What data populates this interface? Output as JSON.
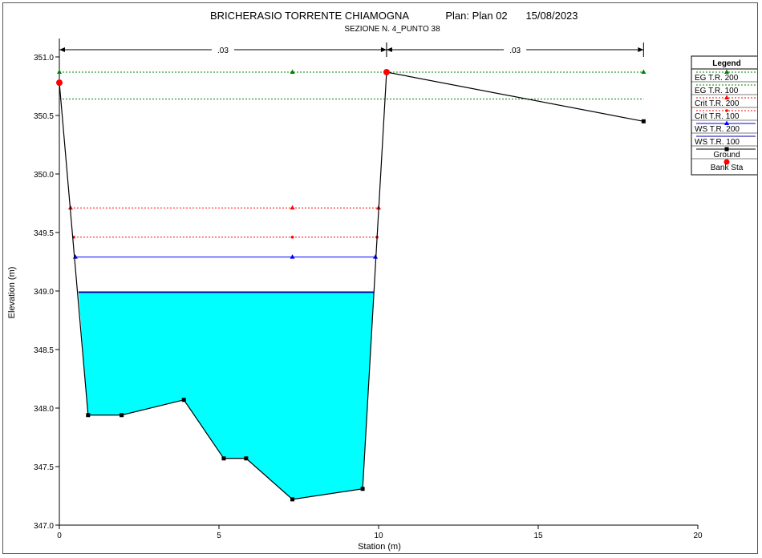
{
  "chart_data": {
    "type": "line",
    "title": "BRICHERASIO TORRENTE CHIAMOGNA",
    "plan": "Plan: Plan 02",
    "date": "15/08/2023",
    "subtitle": "SEZIONE N. 4_PUNTO 38",
    "xlabel": "Station (m)",
    "ylabel": "Elevation (m)",
    "xlim": [
      0,
      20
    ],
    "ylim": [
      347.0,
      351.2
    ],
    "xticks": [
      "0",
      "5",
      "10",
      "15",
      "20"
    ],
    "yticks": [
      "347.0",
      "347.5",
      "348.0",
      "348.5",
      "349.0",
      "349.5",
      "350.0",
      "350.5",
      "351.0"
    ],
    "legend_title": "Legend",
    "legend_position": "right",
    "manning": [
      {
        "label": ".03",
        "from": 0.0,
        "to": 10.25
      },
      {
        "label": ".03",
        "from": 10.25,
        "to": 18.3
      }
    ],
    "ground": {
      "name": "Ground",
      "color": "#000000",
      "x": [
        0.0,
        0.9,
        1.95,
        3.9,
        5.15,
        5.85,
        7.3,
        9.5,
        10.25,
        18.3
      ],
      "y": [
        350.78,
        347.94,
        347.94,
        348.07,
        347.57,
        347.57,
        347.22,
        347.31,
        350.87,
        350.45
      ]
    },
    "bank_sta": {
      "name": "Bank Sta",
      "color": "#ff0000",
      "x": [
        0.0,
        10.25
      ],
      "y": [
        350.78,
        350.87
      ]
    },
    "water_fill": {
      "color": "#00ffff",
      "elevation": 348.99,
      "x_start": 0.6,
      "x_end": 9.85
    },
    "series": [
      {
        "name": "EG T.R. 200",
        "color": "#008000",
        "dash": "2,2",
        "marker": "triangle",
        "y": 350.87,
        "x_start": 0.0,
        "x_end": 18.3,
        "markers_x": [
          0.0,
          7.3,
          18.3
        ]
      },
      {
        "name": "EG T.R. 100",
        "color": "#008000",
        "dash": "2,2",
        "marker": "none",
        "y": 350.64,
        "x_start": 0.0,
        "x_end": 18.3,
        "markers_x": []
      },
      {
        "name": "Crit T.R. 200",
        "color": "#ff0000",
        "dash": "2,2",
        "marker": "triangle",
        "y": 349.71,
        "x_start": 0.35,
        "x_end": 10.0,
        "markers_x": [
          0.35,
          7.3,
          10.0
        ]
      },
      {
        "name": "Crit T.R. 100",
        "color": "#ff0000",
        "dash": "2,2",
        "marker": "star",
        "y": 349.46,
        "x_start": 0.45,
        "x_end": 9.95,
        "markers_x": [
          0.45,
          7.3,
          9.95
        ]
      },
      {
        "name": "WS T.R. 200",
        "color": "#0000ff",
        "dash": "",
        "marker": "triangle",
        "y": 349.29,
        "x_start": 0.5,
        "x_end": 9.9,
        "markers_x": [
          0.5,
          7.3,
          9.9
        ]
      },
      {
        "name": "WS T.R. 100",
        "color": "#0000a0",
        "dash": "",
        "marker": "none",
        "y": 348.99,
        "x_start": 0.6,
        "x_end": 9.85,
        "markers_x": []
      }
    ]
  }
}
